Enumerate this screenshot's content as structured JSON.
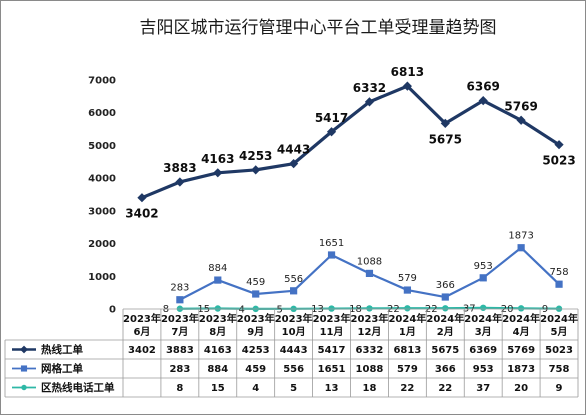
{
  "chart_data": {
    "type": "line",
    "title": "吉阳区城市运行管理中心平台工单受理量趋势图",
    "categories": [
      [
        "2023年",
        "6月"
      ],
      [
        "2023年",
        "7月"
      ],
      [
        "2023年",
        "8月"
      ],
      [
        "2023年",
        "9月"
      ],
      [
        "2023年",
        "10月"
      ],
      [
        "2023年",
        "11月"
      ],
      [
        "2023年",
        "12月"
      ],
      [
        "2024年",
        "1月"
      ],
      [
        "2024年",
        "2月"
      ],
      [
        "2024年",
        "3月"
      ],
      [
        "2024年",
        "4月"
      ],
      [
        "2024年",
        "5月"
      ]
    ],
    "ylim": [
      0,
      7000
    ],
    "yticks": [
      0,
      1000,
      2000,
      3000,
      4000,
      5000,
      6000,
      7000
    ],
    "grid": false,
    "legend": "data-table",
    "series": [
      {
        "name": "热线工单",
        "color": "#1f3864",
        "marker": "diamond",
        "values": [
          3402,
          3883,
          4163,
          4253,
          4443,
          5417,
          6332,
          6813,
          5675,
          6369,
          5769,
          5023
        ]
      },
      {
        "name": "网格工单",
        "color": "#4472c4",
        "marker": "square",
        "values": [
          null,
          283,
          884,
          459,
          556,
          1651,
          1088,
          579,
          366,
          953,
          1873,
          758
        ]
      },
      {
        "name": "区热线电话工单",
        "color": "#2eb8a6",
        "marker": "circle",
        "values": [
          null,
          8,
          15,
          4,
          5,
          13,
          18,
          22,
          22,
          37,
          20,
          9
        ]
      }
    ]
  }
}
